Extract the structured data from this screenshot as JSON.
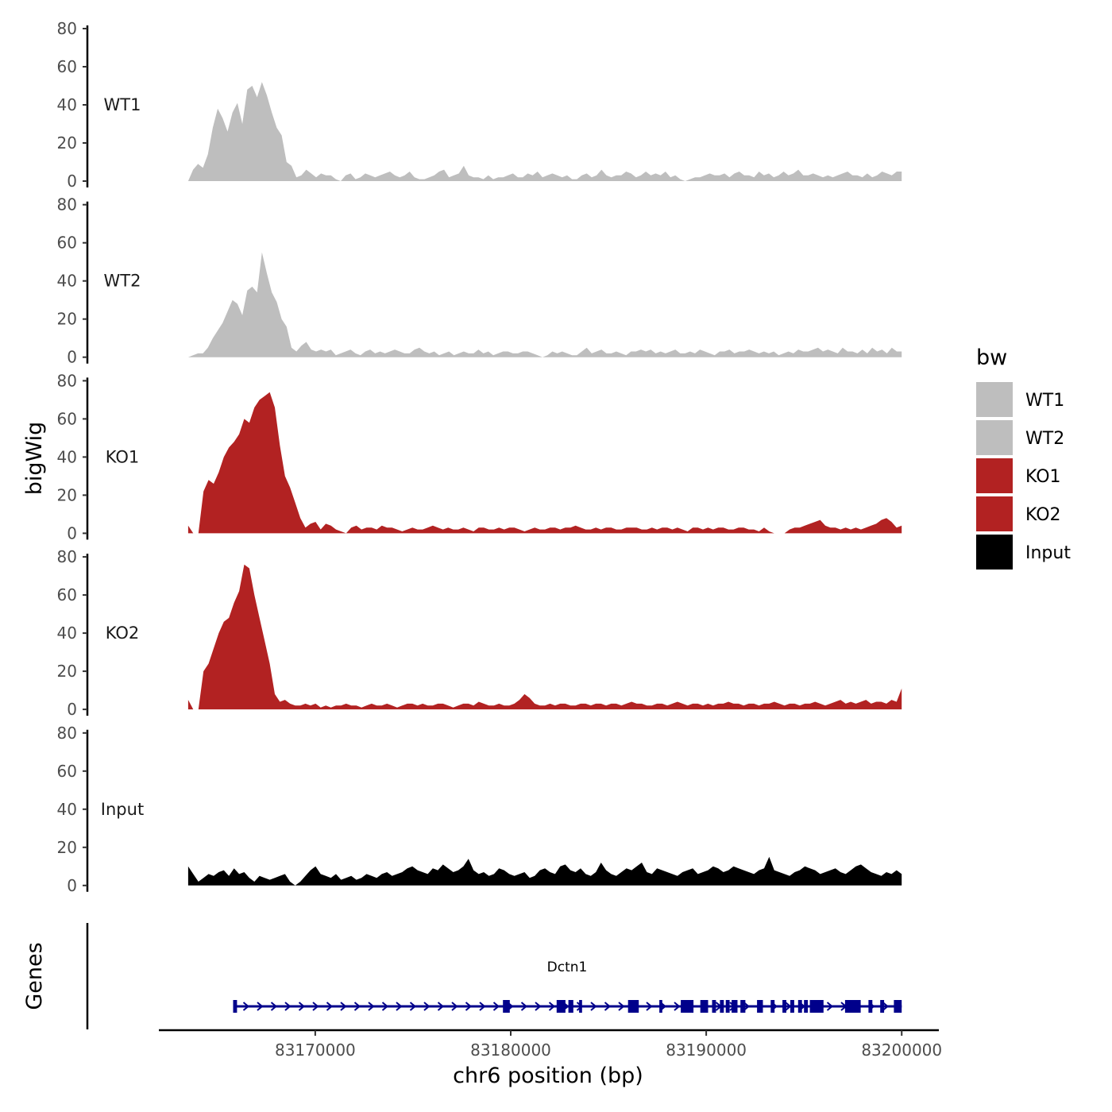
{
  "chart_data": {
    "type": "area",
    "ylabel": "bigWig",
    "xlabel": "chr6 position (bp)",
    "genes_label": "Genes",
    "ylim": [
      0,
      80
    ],
    "yticks": [
      "0",
      "20",
      "40",
      "60",
      "80"
    ],
    "xlim": [
      83162000,
      83201900
    ],
    "xticks": [
      {
        "value": 83170000,
        "label": "83170000"
      },
      {
        "value": 83180000,
        "label": "83180000"
      },
      {
        "value": 83190000,
        "label": "83190000"
      },
      {
        "value": 83200000,
        "label": "83200000"
      }
    ],
    "x_start": 83163500,
    "x_end": 83200000,
    "tracks": [
      {
        "name": "WT1",
        "color": "#bebebe",
        "values": [
          0,
          6,
          9,
          7,
          14,
          28,
          38,
          33,
          26,
          36,
          41,
          30,
          48,
          50,
          44,
          52,
          45,
          36,
          28,
          24,
          10,
          8,
          2,
          3,
          6,
          4,
          2,
          4,
          3,
          3,
          1,
          0,
          3,
          4,
          1,
          2,
          4,
          3,
          2,
          3,
          4,
          5,
          3,
          2,
          3,
          5,
          2,
          1,
          1,
          2,
          3,
          5,
          6,
          2,
          3,
          4,
          8,
          3,
          2,
          2,
          1,
          3,
          1,
          2,
          2,
          3,
          4,
          2,
          2,
          4,
          3,
          5,
          2,
          3,
          4,
          3,
          2,
          3,
          1,
          1,
          3,
          4,
          2,
          3,
          6,
          3,
          2,
          3,
          3,
          5,
          4,
          2,
          3,
          5,
          3,
          4,
          3,
          5,
          2,
          3,
          1,
          0,
          1,
          2,
          2,
          3,
          4,
          3,
          3,
          4,
          2,
          4,
          5,
          3,
          3,
          2,
          5,
          3,
          4,
          2,
          3,
          5,
          3,
          4,
          6,
          3,
          3,
          4,
          3,
          2,
          3,
          2,
          3,
          4,
          5,
          3,
          3,
          2,
          4,
          2,
          3,
          5,
          4,
          3,
          5,
          5
        ]
      },
      {
        "name": "WT2",
        "color": "#bebebe",
        "values": [
          0,
          1,
          2,
          2,
          5,
          10,
          14,
          18,
          24,
          30,
          28,
          22,
          35,
          37,
          34,
          55,
          44,
          34,
          29,
          20,
          16,
          5,
          3,
          6,
          8,
          4,
          3,
          4,
          3,
          4,
          1,
          2,
          3,
          4,
          2,
          1,
          3,
          4,
          2,
          3,
          2,
          3,
          4,
          3,
          2,
          2,
          4,
          5,
          3,
          2,
          3,
          1,
          2,
          3,
          1,
          2,
          3,
          2,
          2,
          4,
          2,
          3,
          1,
          2,
          3,
          3,
          2,
          2,
          3,
          3,
          2,
          1,
          0,
          1,
          3,
          2,
          3,
          2,
          1,
          1,
          3,
          5,
          2,
          3,
          4,
          2,
          2,
          3,
          2,
          1,
          3,
          3,
          4,
          3,
          4,
          2,
          3,
          2,
          3,
          4,
          2,
          2,
          3,
          2,
          4,
          3,
          2,
          1,
          3,
          3,
          4,
          2,
          3,
          3,
          4,
          3,
          2,
          3,
          2,
          3,
          1,
          2,
          3,
          2,
          4,
          3,
          3,
          4,
          5,
          3,
          4,
          3,
          2,
          5,
          3,
          3,
          2,
          4,
          2,
          5,
          3,
          4,
          2,
          5,
          3,
          3
        ]
      },
      {
        "name": "KO1",
        "color": "#b22222",
        "values": [
          4,
          0,
          0,
          22,
          28,
          26,
          32,
          40,
          45,
          48,
          52,
          60,
          58,
          66,
          70,
          72,
          74,
          66,
          46,
          30,
          24,
          16,
          8,
          3,
          5,
          6,
          2,
          5,
          4,
          2,
          1,
          0,
          3,
          4,
          2,
          3,
          3,
          2,
          4,
          3,
          3,
          2,
          1,
          2,
          3,
          2,
          2,
          3,
          4,
          3,
          2,
          3,
          2,
          2,
          3,
          2,
          1,
          3,
          3,
          2,
          2,
          3,
          2,
          3,
          3,
          2,
          1,
          2,
          3,
          2,
          2,
          3,
          3,
          2,
          3,
          3,
          4,
          3,
          2,
          2,
          3,
          2,
          3,
          3,
          2,
          2,
          3,
          3,
          3,
          2,
          2,
          3,
          2,
          3,
          3,
          2,
          3,
          2,
          1,
          3,
          3,
          2,
          3,
          2,
          3,
          3,
          2,
          2,
          3,
          3,
          2,
          2,
          1,
          3,
          1,
          0,
          0,
          0,
          2,
          3,
          3,
          4,
          5,
          6,
          7,
          4,
          3,
          3,
          2,
          3,
          2,
          3,
          2,
          3,
          4,
          5,
          7,
          8,
          6,
          3,
          4
        ]
      },
      {
        "name": "KO2",
        "color": "#b22222",
        "values": [
          5,
          0,
          0,
          20,
          24,
          32,
          40,
          46,
          48,
          56,
          62,
          76,
          74,
          60,
          48,
          36,
          24,
          8,
          4,
          5,
          3,
          2,
          2,
          3,
          2,
          3,
          1,
          2,
          1,
          2,
          2,
          3,
          2,
          2,
          1,
          2,
          3,
          2,
          2,
          3,
          2,
          1,
          2,
          3,
          3,
          2,
          3,
          2,
          2,
          3,
          3,
          2,
          1,
          2,
          3,
          3,
          2,
          4,
          3,
          2,
          2,
          3,
          2,
          2,
          3,
          5,
          8,
          6,
          3,
          2,
          2,
          3,
          2,
          3,
          3,
          2,
          2,
          3,
          3,
          2,
          3,
          3,
          2,
          3,
          3,
          2,
          3,
          4,
          3,
          3,
          2,
          2,
          3,
          3,
          2,
          3,
          4,
          3,
          2,
          3,
          3,
          2,
          3,
          2,
          3,
          3,
          4,
          3,
          3,
          2,
          3,
          3,
          2,
          3,
          3,
          4,
          3,
          2,
          3,
          3,
          2,
          3,
          3,
          4,
          3,
          2,
          3,
          4,
          5,
          3,
          4,
          3,
          4,
          5,
          3,
          4,
          4,
          3,
          5,
          4,
          11
        ]
      },
      {
        "name": "Input",
        "color": "#000000",
        "values": [
          10,
          6,
          2,
          4,
          6,
          5,
          7,
          8,
          5,
          9,
          6,
          7,
          4,
          2,
          5,
          4,
          3,
          4,
          5,
          6,
          2,
          0,
          2,
          5,
          8,
          10,
          6,
          5,
          4,
          6,
          3,
          4,
          5,
          3,
          4,
          6,
          5,
          4,
          6,
          7,
          5,
          6,
          7,
          9,
          10,
          8,
          7,
          6,
          9,
          8,
          11,
          9,
          7,
          8,
          10,
          14,
          8,
          6,
          7,
          5,
          6,
          9,
          8,
          6,
          5,
          6,
          7,
          4,
          5,
          8,
          9,
          7,
          6,
          10,
          11,
          8,
          7,
          9,
          6,
          5,
          7,
          12,
          8,
          6,
          5,
          7,
          9,
          8,
          10,
          12,
          7,
          6,
          9,
          8,
          7,
          6,
          5,
          7,
          8,
          9,
          6,
          7,
          8,
          10,
          9,
          7,
          8,
          10,
          9,
          8,
          7,
          6,
          8,
          9,
          15,
          8,
          7,
          6,
          5,
          7,
          8,
          10,
          9,
          8,
          6,
          7,
          8,
          9,
          7,
          6,
          8,
          10,
          11,
          9,
          7,
          6,
          5,
          7,
          6,
          8,
          6
        ]
      }
    ],
    "gene": {
      "name": "Dctn1",
      "strand": "+",
      "start": 83165800,
      "end": 83200000,
      "color": "#00008b",
      "exons": [
        [
          83165800,
          83166000
        ],
        [
          83179600,
          83179950
        ],
        [
          83182350,
          83182800
        ],
        [
          83182950,
          83183200
        ],
        [
          83183500,
          83183650
        ],
        [
          83186000,
          83186550
        ],
        [
          83187600,
          83187750
        ],
        [
          83188700,
          83189350
        ],
        [
          83189700,
          83190100
        ],
        [
          83190300,
          83190500
        ],
        [
          83190700,
          83190900
        ],
        [
          83191000,
          83191200
        ],
        [
          83191300,
          83191600
        ],
        [
          83191750,
          83192000
        ],
        [
          83192600,
          83192900
        ],
        [
          83193300,
          83193500
        ],
        [
          83193900,
          83194100
        ],
        [
          83194300,
          83194500
        ],
        [
          83194700,
          83194900
        ],
        [
          83195000,
          83195200
        ],
        [
          83195300,
          83196000
        ],
        [
          83197100,
          83197900
        ],
        [
          83198300,
          83198500
        ],
        [
          83198900,
          83199100
        ],
        [
          83199600,
          83200000
        ]
      ]
    },
    "legend": {
      "title": "bw",
      "position": "right",
      "entries": [
        {
          "label": "WT1",
          "color": "#bebebe"
        },
        {
          "label": "WT2",
          "color": "#bebebe"
        },
        {
          "label": "KO1",
          "color": "#b22222"
        },
        {
          "label": "KO2",
          "color": "#b22222"
        },
        {
          "label": "Input",
          "color": "#000000"
        }
      ]
    }
  }
}
